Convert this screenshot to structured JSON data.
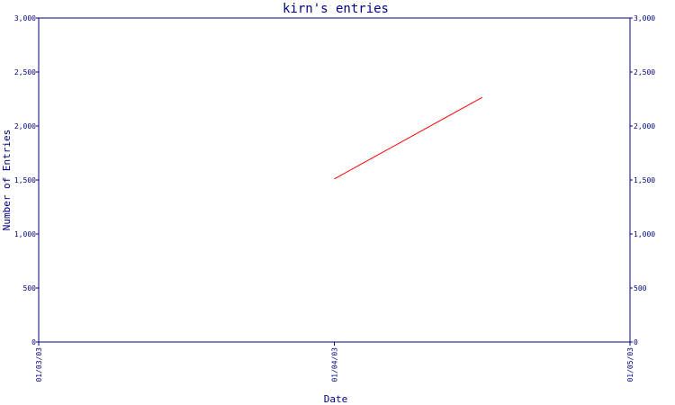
{
  "chart_data": {
    "type": "line",
    "title": "kirn's entries",
    "xlabel": "Date",
    "ylabel": "Number of Entries",
    "x_ticks": [
      "01/03/03",
      "01/04/03",
      "01/05/03"
    ],
    "y_ticks": [
      "0",
      "500",
      "1,000",
      "1,500",
      "2,000",
      "2,500",
      "3,000"
    ],
    "ylim": [
      0,
      3000
    ],
    "xlim": [
      "2003-01-03",
      "2003-01-05"
    ],
    "grid": false,
    "line_color": "#ff0000",
    "axis_color": "#000080",
    "series": [
      {
        "x": [
          "2003-01-03",
          "2003-01-04",
          "2003-01-04T12:00"
        ],
        "y": [
          null,
          1510,
          2265
        ]
      }
    ]
  }
}
